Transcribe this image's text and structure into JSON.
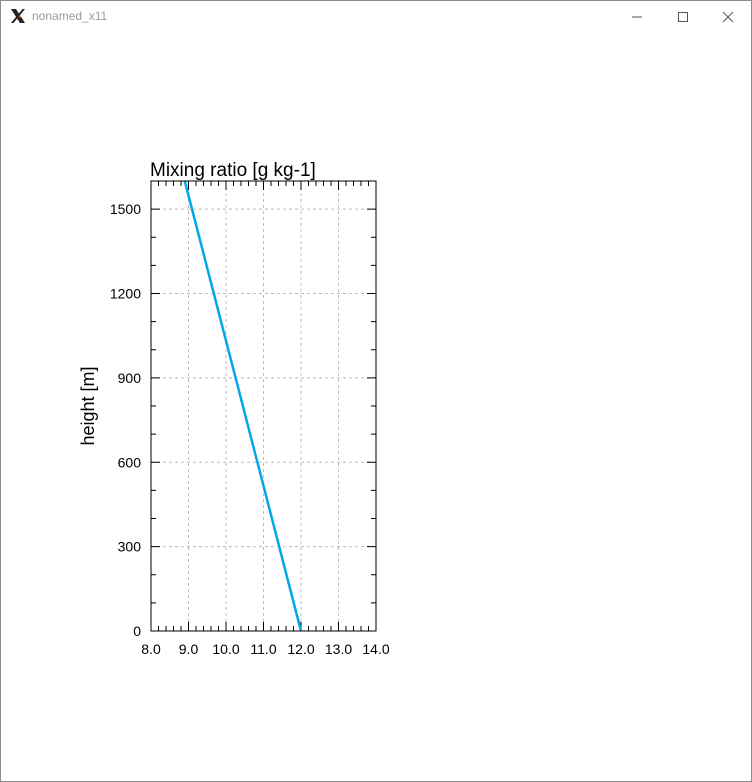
{
  "window": {
    "title": "nonamed_x11",
    "app_icon": "x11-logo-icon",
    "controls": [
      "minimize-icon",
      "maximize-icon",
      "close-icon"
    ]
  },
  "chart_data": {
    "type": "line",
    "title": "Mixing ratio [g kg-1]",
    "xlabel": "",
    "ylabel": "height [m]",
    "xlim": [
      8.0,
      14.0
    ],
    "ylim": [
      0,
      1600
    ],
    "x_ticks": [
      "8.0",
      "9.0",
      "10.0",
      "11.0",
      "12.0",
      "13.0",
      "14.0"
    ],
    "y_ticks": [
      "0",
      "300",
      "600",
      "900",
      "1200",
      "1500"
    ],
    "grid": true,
    "series": [
      {
        "color": "#00a9e6",
        "points": [
          [
            12.0,
            0
          ],
          [
            8.9,
            1600
          ]
        ]
      }
    ]
  }
}
